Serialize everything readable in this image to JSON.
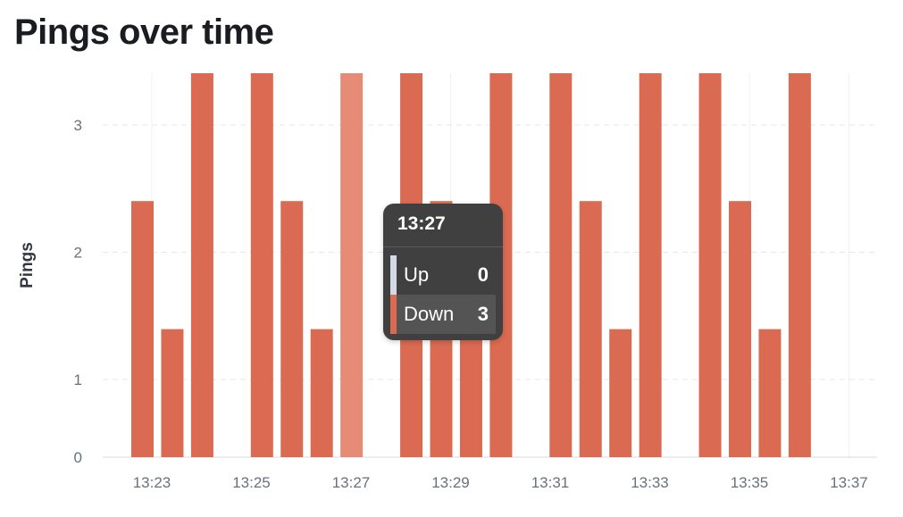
{
  "title": "Pings over time",
  "chart_data": {
    "type": "bar",
    "stacked": true,
    "ylabel": "Pings",
    "xlabel": "",
    "y_ticks": [
      0,
      1,
      2,
      3
    ],
    "x_ticks": [
      "13:23",
      "13:25",
      "13:27",
      "13:29",
      "13:31",
      "13:33",
      "13:35",
      "13:37"
    ],
    "series": [
      {
        "name": "Up",
        "color": "#d3dae6",
        "values": [
          0,
          0,
          0,
          0,
          0,
          0,
          0,
          0,
          0,
          0,
          0,
          0,
          0,
          0,
          0,
          0,
          0,
          0,
          0,
          0,
          0,
          0,
          0
        ]
      },
      {
        "name": "Down",
        "color": "#da6b52",
        "values": [
          2,
          1,
          3,
          0,
          3,
          2,
          1,
          3,
          0,
          3,
          2,
          1,
          3,
          0,
          3,
          2,
          1,
          3,
          0,
          3,
          2,
          1,
          3
        ]
      }
    ],
    "highlighted_index": 7,
    "highlight_color": "#e68b76",
    "grid": true
  },
  "tooltip": {
    "time": "13:27",
    "rows": [
      {
        "label": "Up",
        "value": "0",
        "color": "#d3dae6"
      },
      {
        "label": "Down",
        "value": "3",
        "color": "#da6b52"
      }
    ]
  }
}
